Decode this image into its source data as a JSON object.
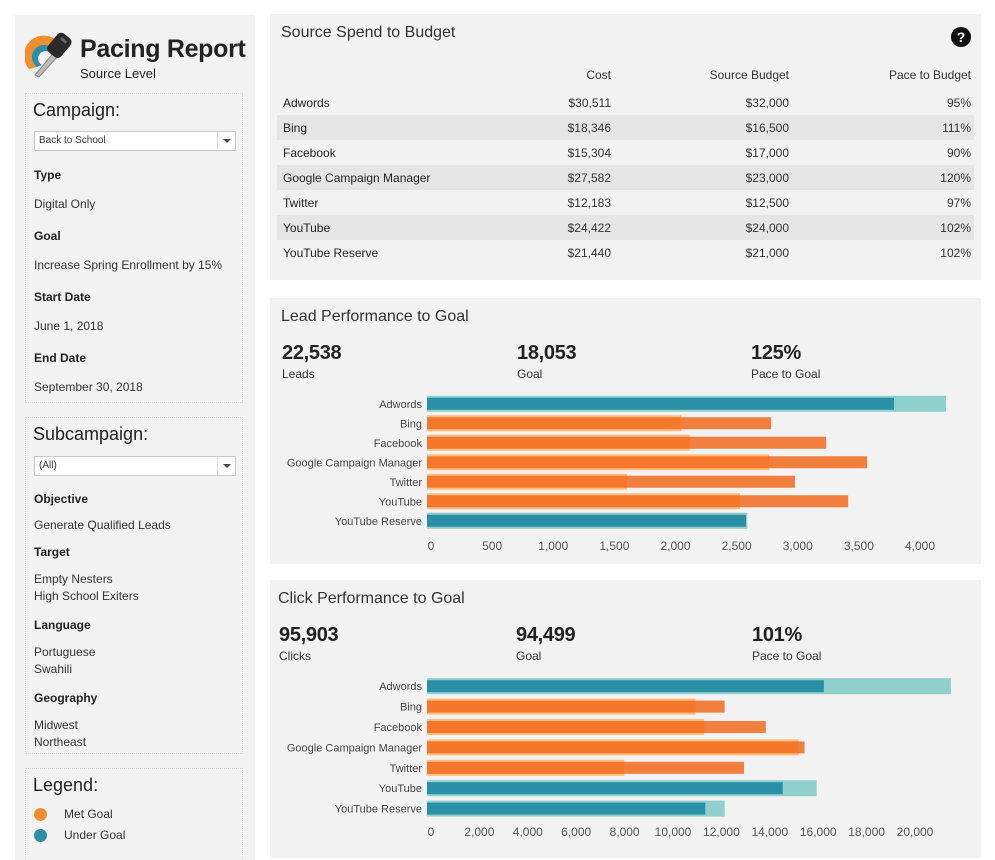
{
  "header": {
    "title": "Pacing Report",
    "subtitle": "Source Level",
    "logo_icon": "key-icon"
  },
  "campaign_panel": {
    "title": "Campaign:",
    "selected": "Back to School",
    "fields": [
      {
        "label": "Type",
        "value": [
          "Digital Only"
        ]
      },
      {
        "label": "Goal",
        "value": [
          "Increase Spring Enrollment by 15%"
        ]
      },
      {
        "label": "Start Date",
        "value": [
          "June 1, 2018"
        ]
      },
      {
        "label": "End Date",
        "value": [
          "September 30, 2018"
        ]
      }
    ]
  },
  "subcampaign_panel": {
    "title": "Subcampaign:",
    "selected": "(All)",
    "fields": [
      {
        "label": "Objective",
        "value": [
          "Generate Qualified Leads"
        ]
      },
      {
        "label": "Target",
        "value": [
          "Empty Nesters",
          "High School Exiters"
        ]
      },
      {
        "label": "Language",
        "value": [
          "Portuguese",
          "Swahili"
        ]
      },
      {
        "label": "Geography",
        "value": [
          "Midwest",
          "Northeast"
        ]
      }
    ]
  },
  "legend": {
    "title": "Legend:",
    "items": [
      {
        "label": "Met Goal",
        "color": "#f28e2b"
      },
      {
        "label": "Under Goal",
        "color": "#2c8fa8"
      }
    ]
  },
  "spend": {
    "title": "Source Spend to Budget",
    "help_icon": "question-icon",
    "columns": [
      "",
      "Cost",
      "Source Budget",
      "Pace to Budget"
    ],
    "rows": [
      {
        "source": "Adwords",
        "cost": "$30,511",
        "budget": "$32,000",
        "pace": "95%"
      },
      {
        "source": "Bing",
        "cost": "$18,346",
        "budget": "$16,500",
        "pace": "111%"
      },
      {
        "source": "Facebook",
        "cost": "$15,304",
        "budget": "$17,000",
        "pace": "90%"
      },
      {
        "source": "Google Campaign Manager",
        "cost": "$27,582",
        "budget": "$23,000",
        "pace": "120%"
      },
      {
        "source": "Twitter",
        "cost": "$12,183",
        "budget": "$12,500",
        "pace": "97%"
      },
      {
        "source": "YouTube",
        "cost": "$24,422",
        "budget": "$24,000",
        "pace": "102%"
      },
      {
        "source": "YouTube Reserve",
        "cost": "$21,440",
        "budget": "$21,000",
        "pace": "102%"
      }
    ]
  },
  "leads": {
    "title": "Lead Performance to Goal",
    "kpis": [
      {
        "value": "22,538",
        "label": "Leads"
      },
      {
        "value": "18,053",
        "label": "Goal"
      },
      {
        "value": "125%",
        "label": "Pace to Goal"
      }
    ]
  },
  "clicks": {
    "title": "Click Performance to Goal",
    "kpis": [
      {
        "value": "95,903",
        "label": "Clicks"
      },
      {
        "value": "94,499",
        "label": "Goal"
      },
      {
        "value": "101%",
        "label": "Pace to Goal"
      }
    ]
  },
  "colors": {
    "met_actual": "#f26b1d",
    "met_goal": "#ffbe7d",
    "under_actual": "#2c8fa8",
    "under_goal": "#8fd0cc",
    "panel_bg": "#f2f2f2"
  },
  "chart_data": [
    {
      "type": "bar",
      "title": "Lead Performance to Goal",
      "orientation": "horizontal",
      "categories": [
        "Adwords",
        "Bing",
        "Facebook",
        "Google Campaign Manager",
        "Twitter",
        "YouTube",
        "YouTube Reserve"
      ],
      "series": [
        {
          "name": "Leads",
          "values": [
            3820,
            2815,
            3265,
            3600,
            3010,
            3445,
            2610
          ]
        },
        {
          "name": "Goal",
          "values": [
            4245,
            2080,
            2150,
            2800,
            1635,
            2560,
            2620
          ]
        }
      ],
      "status": [
        "Under Goal",
        "Met Goal",
        "Met Goal",
        "Met Goal",
        "Met Goal",
        "Met Goal",
        "Under Goal"
      ],
      "xticks": [
        "0",
        "500",
        "1,000",
        "1,500",
        "2,000",
        "2,500",
        "3,000",
        "3,500",
        "4,000"
      ],
      "xlim": [
        0,
        4300
      ],
      "tick_values": [
        0,
        500,
        1000,
        1500,
        2000,
        2500,
        3000,
        3500,
        4000
      ],
      "xlabel": "",
      "ylabel": "",
      "grid": false
    },
    {
      "type": "bar",
      "title": "Click Performance to Goal",
      "orientation": "horizontal",
      "categories": [
        "Adwords",
        "Bing",
        "Facebook",
        "Google Campaign Manager",
        "Twitter",
        "YouTube",
        "YouTube Reserve"
      ],
      "series": [
        {
          "name": "Clicks",
          "values": [
            16400,
            12300,
            14000,
            15600,
            13100,
            14700,
            11500
          ]
        },
        {
          "name": "Goal",
          "values": [
            21650,
            11100,
            11450,
            15350,
            8150,
            16100,
            12300
          ]
        }
      ],
      "status": [
        "Under Goal",
        "Met Goal",
        "Met Goal",
        "Met Goal",
        "Met Goal",
        "Under Goal",
        "Under Goal"
      ],
      "xticks": [
        "0",
        "2,000",
        "4,000",
        "6,000",
        "8,000",
        "10,000",
        "12,000",
        "14,000",
        "16,000",
        "18,000",
        "20,000"
      ],
      "tick_values": [
        0,
        2000,
        4000,
        6000,
        8000,
        10000,
        12000,
        14000,
        16000,
        18000,
        20000
      ],
      "xlim": [
        0,
        21800
      ],
      "xlabel": "",
      "ylabel": "",
      "grid": false
    }
  ]
}
